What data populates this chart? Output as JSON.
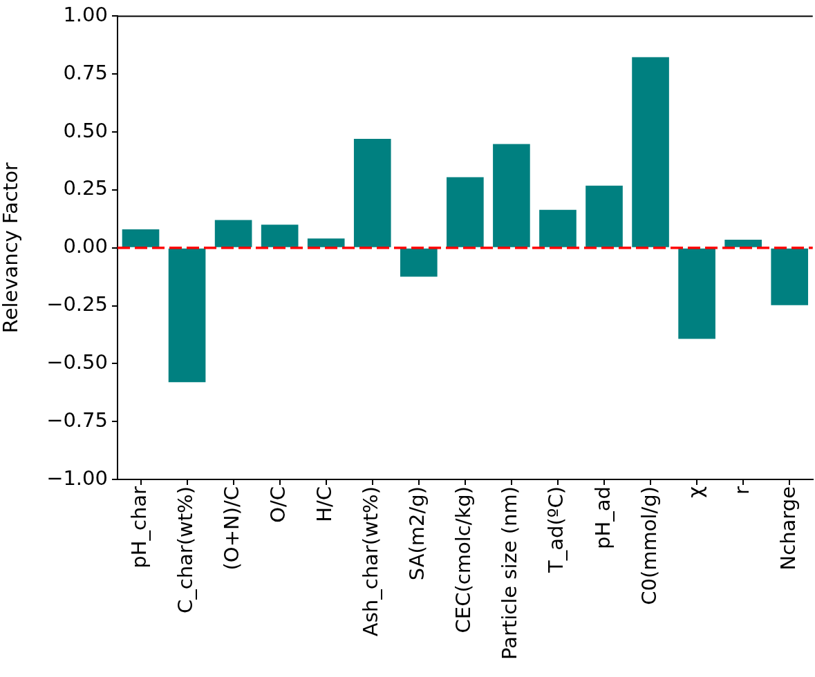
{
  "chart_data": {
    "type": "bar",
    "ylabel": "Relevancy Factor",
    "categories": [
      "pH_char",
      "C_char(wt%)",
      "(O+N)/C",
      "O/C",
      "H/C",
      "Ash_char(wt%)",
      "SA(m2/g)",
      "CEC(cmolc/kg)",
      "Particle size (nm)",
      "T_ad(ºC)",
      "pH_ad",
      "C0(mmol/g)",
      "χ",
      "r",
      "Ncharge"
    ],
    "values": [
      0.08,
      -0.58,
      0.12,
      0.1,
      0.04,
      0.47,
      -0.125,
      0.305,
      0.448,
      0.164,
      0.268,
      0.823,
      -0.393,
      0.035,
      -0.248
    ],
    "color": "#008080",
    "ylim": [
      -1,
      1
    ],
    "yticks": [
      {
        "value": -1,
        "label": "−1.00"
      },
      {
        "value": -0.75,
        "label": "−0.75"
      },
      {
        "value": -0.5,
        "label": "−0.50"
      },
      {
        "value": -0.25,
        "label": "−0.25"
      },
      {
        "value": 0,
        "label": "0.00"
      },
      {
        "value": 0.25,
        "label": "0.25"
      },
      {
        "value": 0.5,
        "label": "0.50"
      },
      {
        "value": 0.75,
        "label": "0.75"
      },
      {
        "value": 1,
        "label": "1.00"
      }
    ],
    "ref_lines": [
      {
        "axis": "y",
        "value": 0,
        "color": "#ff0000",
        "line_style": "dashed"
      }
    ]
  }
}
